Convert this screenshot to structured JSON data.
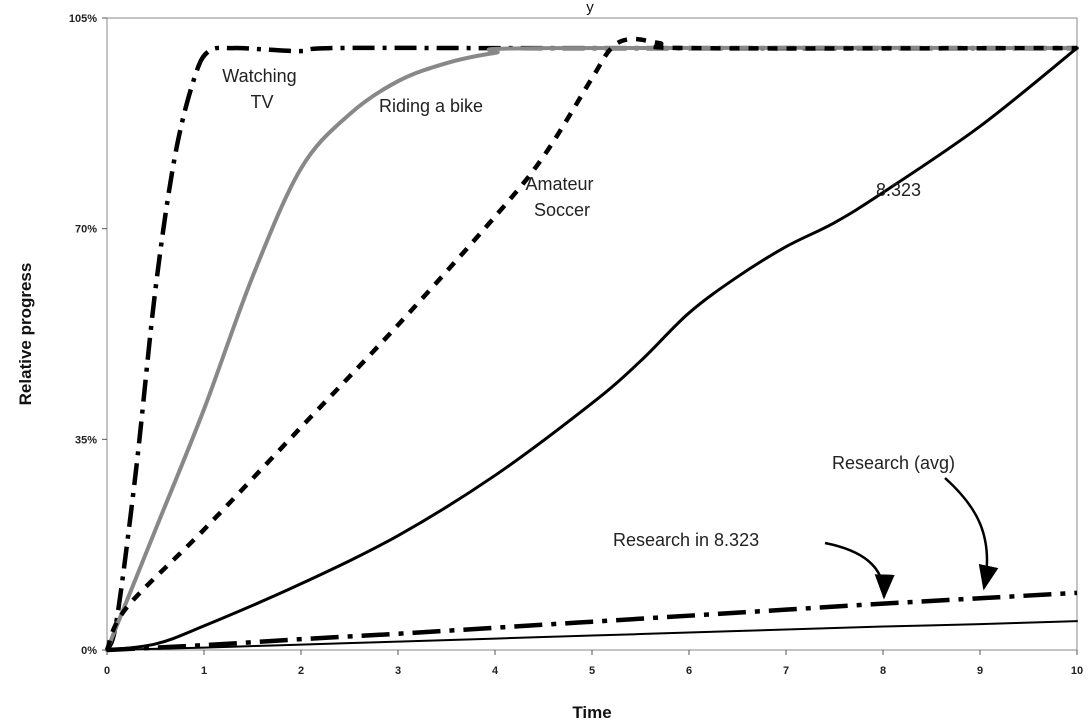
{
  "chart_data": {
    "type": "line",
    "title_fragment": "y",
    "xlabel": "Time",
    "ylabel": "Relative progress",
    "xlim": [
      0,
      10
    ],
    "ylim": [
      0,
      105
    ],
    "x_ticks": [
      "0",
      "1",
      "2",
      "3",
      "4",
      "5",
      "6",
      "7",
      "8",
      "9",
      "10"
    ],
    "y_ticks": [
      {
        "value": 0,
        "label": "0%"
      },
      {
        "value": 35,
        "label": "35%"
      },
      {
        "value": 70,
        "label": "70%"
      },
      {
        "value": 105,
        "label": "105%"
      }
    ],
    "grid": false,
    "series": [
      {
        "name": "Watching TV",
        "style": "dash-dot",
        "color": "#000000",
        "points": [
          [
            0,
            0
          ],
          [
            0.1,
            5
          ],
          [
            0.3,
            30
          ],
          [
            0.5,
            60
          ],
          [
            0.7,
            82
          ],
          [
            0.9,
            95
          ],
          [
            1.05,
            99.5
          ],
          [
            1.3,
            100
          ],
          [
            1.6,
            99.8
          ],
          [
            2,
            99.5
          ],
          [
            2.3,
            100
          ],
          [
            4,
            100
          ],
          [
            5.5,
            100
          ],
          [
            10,
            100
          ]
        ]
      },
      {
        "name": "Riding a bike",
        "style": "solid-gray",
        "color": "#888888",
        "points": [
          [
            0,
            0
          ],
          [
            0.5,
            20
          ],
          [
            1,
            40
          ],
          [
            1.5,
            62
          ],
          [
            2,
            80
          ],
          [
            2.5,
            89
          ],
          [
            3,
            94.5
          ],
          [
            3.5,
            97.5
          ],
          [
            4,
            99.2
          ],
          [
            4.5,
            100
          ],
          [
            10,
            100
          ]
        ]
      },
      {
        "name": "Amateur Soccer",
        "style": "dashed",
        "color": "#000000",
        "points": [
          [
            0,
            0
          ],
          [
            0.2,
            7
          ],
          [
            1,
            20
          ],
          [
            2,
            37
          ],
          [
            3,
            54
          ],
          [
            4,
            72
          ],
          [
            4.5,
            82
          ],
          [
            5,
            95
          ],
          [
            5.2,
            100
          ],
          [
            5.4,
            101.5
          ],
          [
            5.7,
            100.8
          ],
          [
            6,
            100
          ],
          [
            10,
            100
          ]
        ]
      },
      {
        "name": "8.323",
        "style": "solid",
        "color": "#000000",
        "points": [
          [
            0,
            0
          ],
          [
            0.5,
            1
          ],
          [
            1,
            4
          ],
          [
            2,
            11
          ],
          [
            3,
            19
          ],
          [
            4,
            29
          ],
          [
            5,
            41
          ],
          [
            5.5,
            48
          ],
          [
            6,
            56
          ],
          [
            6.5,
            62
          ],
          [
            7,
            67
          ],
          [
            7.5,
            71
          ],
          [
            8,
            76
          ],
          [
            9,
            87
          ],
          [
            10,
            100
          ]
        ]
      },
      {
        "name": "Research (avg)",
        "style": "long-dash-dot",
        "color": "#000000",
        "points": [
          [
            0,
            0
          ],
          [
            1,
            0.8
          ],
          [
            2,
            1.8
          ],
          [
            3,
            2.7
          ],
          [
            4,
            3.7
          ],
          [
            5,
            4.7
          ],
          [
            6,
            5.7
          ],
          [
            7,
            6.7
          ],
          [
            8,
            7.7
          ],
          [
            9,
            8.6
          ],
          [
            10,
            9.5
          ]
        ]
      },
      {
        "name": "Research in 8.323",
        "style": "thin-solid",
        "color": "#000000",
        "points": [
          [
            0,
            0
          ],
          [
            1,
            0.4
          ],
          [
            2,
            0.9
          ],
          [
            3,
            1.4
          ],
          [
            4,
            1.9
          ],
          [
            5,
            2.4
          ],
          [
            6,
            2.9
          ],
          [
            7,
            3.4
          ],
          [
            8,
            3.9
          ],
          [
            9,
            4.3
          ],
          [
            10,
            4.8
          ]
        ]
      }
    ],
    "annotations": [
      {
        "lines": [
          "Watching",
          "TV"
        ]
      },
      {
        "lines": [
          "Riding a bike"
        ]
      },
      {
        "lines": [
          "Amateur",
          "Soccer"
        ]
      },
      {
        "lines": [
          "8.323"
        ]
      },
      {
        "lines": [
          "Research (avg)"
        ]
      },
      {
        "lines": [
          "Research in 8.323"
        ]
      }
    ]
  }
}
